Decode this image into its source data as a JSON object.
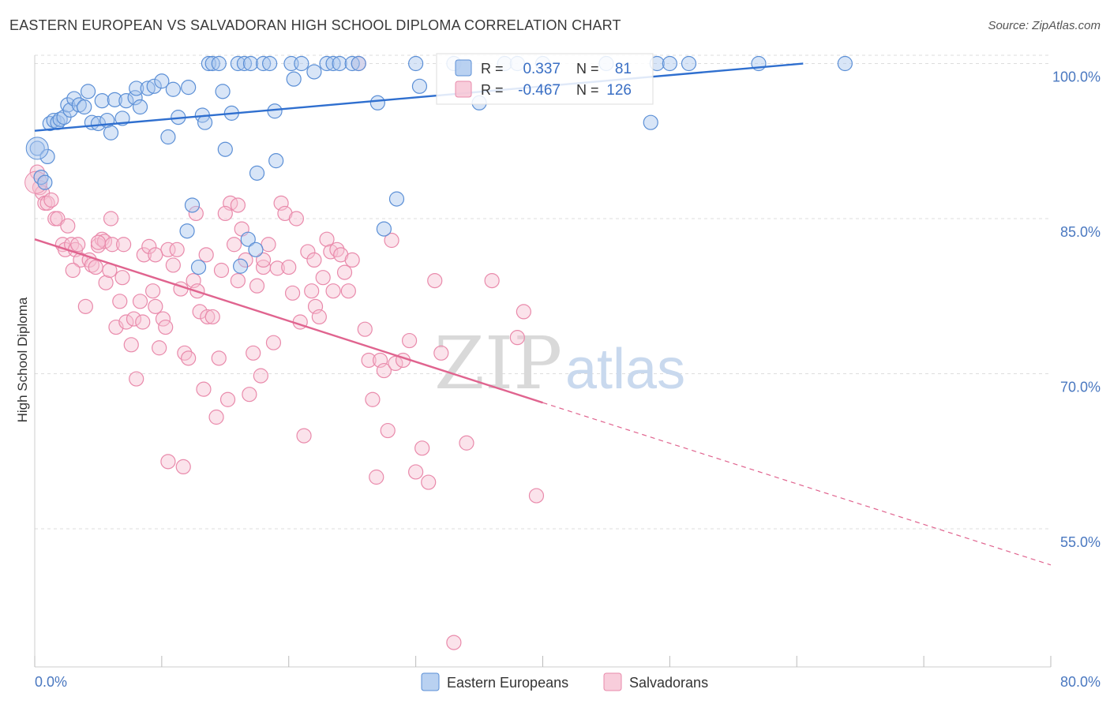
{
  "title": "EASTERN EUROPEAN VS SALVADORAN HIGH SCHOOL DIPLOMA CORRELATION CHART",
  "source": "Source: ZipAtlas.com",
  "watermark": {
    "zip": "ZIP",
    "atlas": "atlas"
  },
  "colors": {
    "blue_fill": "#a8c6ee",
    "blue_stroke": "#5b8fd6",
    "blue_line": "#2f6fcf",
    "pink_fill": "#f6c1d2",
    "pink_stroke": "#e98aab",
    "pink_line": "#e0648f",
    "grid": "#dddddd",
    "axis_label": "#4a78c0"
  },
  "stats_box": {
    "rows": [
      {
        "r_label": "R =",
        "r_value": "0.337",
        "n_label": "N =",
        "n_value": "81"
      },
      {
        "r_label": "R =",
        "r_value": "-0.467",
        "n_label": "N =",
        "n_value": "126"
      }
    ]
  },
  "chart_data": {
    "type": "scatter",
    "title": "EASTERN EUROPEAN VS SALVADORAN HIGH SCHOOL DIPLOMA CORRELATION CHART",
    "xlabel": "",
    "ylabel": "High School Diploma",
    "xlim": [
      0,
      80
    ],
    "ylim": [
      42,
      101
    ],
    "x_tick_labels": [
      "0.0%",
      "80.0%"
    ],
    "y_ticks": [
      100,
      85,
      70,
      55
    ],
    "y_tick_labels": [
      "100.0%",
      "85.0%",
      "70.0%",
      "55.0%"
    ],
    "grid": true,
    "legend_position": "bottom",
    "series": [
      {
        "name": "Eastern Europeans",
        "r": 0.337,
        "n": 81,
        "trend": {
          "x": [
            0,
            60.5
          ],
          "y": [
            93.5,
            100.0
          ],
          "dashed_to": null
        },
        "points": [
          [
            0.2,
            91.8
          ],
          [
            0.5,
            89.0
          ],
          [
            0.8,
            88.5
          ],
          [
            1.0,
            91.0
          ],
          [
            1.2,
            94.2
          ],
          [
            1.5,
            94.5
          ],
          [
            1.8,
            94.3
          ],
          [
            2.0,
            94.6
          ],
          [
            2.3,
            94.8
          ],
          [
            2.6,
            96.0
          ],
          [
            2.8,
            95.5
          ],
          [
            3.1,
            96.6
          ],
          [
            3.5,
            96.0
          ],
          [
            3.9,
            95.8
          ],
          [
            4.2,
            97.3
          ],
          [
            4.5,
            94.3
          ],
          [
            5.0,
            94.2
          ],
          [
            5.3,
            96.4
          ],
          [
            5.7,
            94.5
          ],
          [
            6.0,
            93.3
          ],
          [
            6.3,
            96.5
          ],
          [
            6.9,
            94.7
          ],
          [
            7.2,
            96.4
          ],
          [
            7.9,
            96.7
          ],
          [
            8.0,
            97.6
          ],
          [
            8.3,
            95.8
          ],
          [
            8.9,
            97.6
          ],
          [
            9.4,
            97.8
          ],
          [
            10.0,
            98.3
          ],
          [
            10.5,
            92.9
          ],
          [
            10.9,
            97.5
          ],
          [
            11.3,
            94.8
          ],
          [
            12.1,
            97.7
          ],
          [
            12.4,
            86.3
          ],
          [
            12.9,
            80.3
          ],
          [
            12.0,
            83.8
          ],
          [
            13.2,
            95.0
          ],
          [
            13.4,
            94.3
          ],
          [
            13.7,
            100.0
          ],
          [
            14.0,
            100.0
          ],
          [
            14.5,
            100.0
          ],
          [
            14.8,
            97.3
          ],
          [
            15.0,
            91.7
          ],
          [
            15.5,
            95.2
          ],
          [
            16.0,
            100.0
          ],
          [
            16.5,
            100.0
          ],
          [
            17.0,
            100.0
          ],
          [
            16.2,
            80.4
          ],
          [
            16.8,
            83.0
          ],
          [
            17.4,
            82.0
          ],
          [
            17.5,
            89.4
          ],
          [
            18.0,
            100.0
          ],
          [
            18.5,
            100.0
          ],
          [
            18.9,
            95.4
          ],
          [
            19.0,
            90.6
          ],
          [
            20.2,
            100.0
          ],
          [
            20.4,
            98.5
          ],
          [
            21.0,
            100.0
          ],
          [
            22.0,
            99.2
          ],
          [
            23.0,
            100.0
          ],
          [
            23.5,
            100.0
          ],
          [
            24.0,
            100.0
          ],
          [
            25.0,
            100.0
          ],
          [
            25.5,
            100.0
          ],
          [
            27.0,
            96.2
          ],
          [
            27.5,
            84.0
          ],
          [
            28.5,
            86.9
          ],
          [
            30.0,
            100.0
          ],
          [
            30.3,
            97.8
          ],
          [
            33.0,
            100.0
          ],
          [
            35.0,
            96.2
          ],
          [
            37.0,
            100.0
          ],
          [
            38.0,
            100.0
          ],
          [
            40.0,
            100.0
          ],
          [
            45.0,
            100.0
          ],
          [
            48.5,
            94.3
          ],
          [
            49.0,
            100.0
          ],
          [
            50.0,
            100.0
          ],
          [
            51.5,
            100.0
          ],
          [
            57.0,
            100.0
          ],
          [
            63.8,
            100.0
          ]
        ]
      },
      {
        "name": "Salvadorans",
        "r": -0.467,
        "n": 126,
        "trend": {
          "x": [
            0,
            40
          ],
          "y": [
            83.0,
            67.2
          ],
          "dashed_to": [
            80,
            51.5
          ]
        },
        "points": [
          [
            0.2,
            89.5
          ],
          [
            0.4,
            88.0
          ],
          [
            0.6,
            87.5
          ],
          [
            0.8,
            86.5
          ],
          [
            1.0,
            86.5
          ],
          [
            1.3,
            86.8
          ],
          [
            1.6,
            85.0
          ],
          [
            1.8,
            85.0
          ],
          [
            2.2,
            82.5
          ],
          [
            2.4,
            82.0
          ],
          [
            2.6,
            84.3
          ],
          [
            2.9,
            82.5
          ],
          [
            3.2,
            82.0
          ],
          [
            3.4,
            82.5
          ],
          [
            3.6,
            81.0
          ],
          [
            4.0,
            76.5
          ],
          [
            4.3,
            81.0
          ],
          [
            4.5,
            80.5
          ],
          [
            4.8,
            80.3
          ],
          [
            5.0,
            82.4
          ],
          [
            5.3,
            83.0
          ],
          [
            5.5,
            82.8
          ],
          [
            5.6,
            78.8
          ],
          [
            5.9,
            80.0
          ],
          [
            6.1,
            82.5
          ],
          [
            6.4,
            74.5
          ],
          [
            6.7,
            77.0
          ],
          [
            6.9,
            79.3
          ],
          [
            7.2,
            75.0
          ],
          [
            7.6,
            72.8
          ],
          [
            7.8,
            75.3
          ],
          [
            8.0,
            69.5
          ],
          [
            8.3,
            77.0
          ],
          [
            8.6,
            81.5
          ],
          [
            9.0,
            82.3
          ],
          [
            9.3,
            78.0
          ],
          [
            9.5,
            76.5
          ],
          [
            9.8,
            72.5
          ],
          [
            10.1,
            75.3
          ],
          [
            10.3,
            74.5
          ],
          [
            10.5,
            82.0
          ],
          [
            10.9,
            80.5
          ],
          [
            11.2,
            82.0
          ],
          [
            11.5,
            78.2
          ],
          [
            11.8,
            72.0
          ],
          [
            12.1,
            71.5
          ],
          [
            12.5,
            79.0
          ],
          [
            12.8,
            78.0
          ],
          [
            13.0,
            76.0
          ],
          [
            13.3,
            68.5
          ],
          [
            13.6,
            75.5
          ],
          [
            14.0,
            75.5
          ],
          [
            14.3,
            65.8
          ],
          [
            14.7,
            80.0
          ],
          [
            15.2,
            67.5
          ],
          [
            15.4,
            86.5
          ],
          [
            15.7,
            82.5
          ],
          [
            16.0,
            79.0
          ],
          [
            16.3,
            84.0
          ],
          [
            16.6,
            81.0
          ],
          [
            16.9,
            68.0
          ],
          [
            17.2,
            72.0
          ],
          [
            17.5,
            78.5
          ],
          [
            17.8,
            69.8
          ],
          [
            18.0,
            80.3
          ],
          [
            18.4,
            82.5
          ],
          [
            18.8,
            73.0
          ],
          [
            19.1,
            80.2
          ],
          [
            19.4,
            86.5
          ],
          [
            19.7,
            85.5
          ],
          [
            20.0,
            80.3
          ],
          [
            20.3,
            77.8
          ],
          [
            20.6,
            85.0
          ],
          [
            20.9,
            75.0
          ],
          [
            21.2,
            64.0
          ],
          [
            21.5,
            81.8
          ],
          [
            21.8,
            78.0
          ],
          [
            22.1,
            76.5
          ],
          [
            22.4,
            75.5
          ],
          [
            22.7,
            79.3
          ],
          [
            23.0,
            83.0
          ],
          [
            23.3,
            81.8
          ],
          [
            23.5,
            78.0
          ],
          [
            23.8,
            82.0
          ],
          [
            24.1,
            81.5
          ],
          [
            24.4,
            79.8
          ],
          [
            24.7,
            78.0
          ],
          [
            25.0,
            81.0
          ],
          [
            25.5,
            100.0
          ],
          [
            26.0,
            74.3
          ],
          [
            26.3,
            71.3
          ],
          [
            26.6,
            67.5
          ],
          [
            26.9,
            60.0
          ],
          [
            27.2,
            71.3
          ],
          [
            27.5,
            70.3
          ],
          [
            27.8,
            64.5
          ],
          [
            28.1,
            82.9
          ],
          [
            28.4,
            71.0
          ],
          [
            29.0,
            71.3
          ],
          [
            29.5,
            73.2
          ],
          [
            30.0,
            60.5
          ],
          [
            30.5,
            62.8
          ],
          [
            31.0,
            59.5
          ],
          [
            31.5,
            79.0
          ],
          [
            32.0,
            72.0
          ],
          [
            33.0,
            44.0
          ],
          [
            34.0,
            63.3
          ],
          [
            36.0,
            79.0
          ],
          [
            38.0,
            73.5
          ],
          [
            38.5,
            76.0
          ],
          [
            39.5,
            58.2
          ],
          [
            11.7,
            61.0
          ],
          [
            10.5,
            61.5
          ],
          [
            14.5,
            71.5
          ],
          [
            12.7,
            85.5
          ],
          [
            15.0,
            85.5
          ],
          [
            16.0,
            86.3
          ],
          [
            8.5,
            75.0
          ],
          [
            6.0,
            85.0
          ],
          [
            5.0,
            82.7
          ],
          [
            7.0,
            82.5
          ],
          [
            9.5,
            81.5
          ],
          [
            3.0,
            80.0
          ],
          [
            13.5,
            81.5
          ],
          [
            18.0,
            81.0
          ],
          [
            22.0,
            81.0
          ]
        ]
      }
    ]
  }
}
